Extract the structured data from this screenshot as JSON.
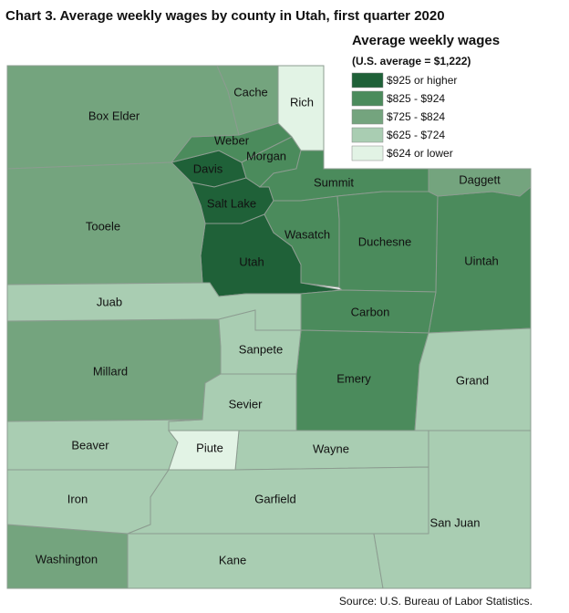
{
  "title": "Chart 3. Average weekly wages by county in Utah, first quarter 2020",
  "legend": {
    "title": "Average weekly wages",
    "subtitle": "(U.S. average = $1,222)",
    "items": [
      {
        "label": "$925 or higher",
        "color": "#1f6138",
        "counties": [
          "Davis",
          "Salt Lake",
          "Utah"
        ]
      },
      {
        "label": "$825 - $924",
        "color": "#4b8b5c",
        "counties": [
          "Weber",
          "Morgan",
          "Summit",
          "Wasatch",
          "Duchesne",
          "Uintah",
          "Carbon",
          "Emery"
        ]
      },
      {
        "label": "$725 - $824",
        "color": "#74a47e",
        "counties": [
          "Box Elder",
          "Cache",
          "Tooele",
          "Millard",
          "Washington",
          "Daggett"
        ]
      },
      {
        "label": "$625 - $724",
        "color": "#a9cdb2",
        "counties": [
          "Juab",
          "Sanpete",
          "Sevier",
          "Beaver",
          "Wayne",
          "Iron",
          "Garfield",
          "Kane",
          "San Juan",
          "Grand"
        ]
      },
      {
        "label": "$624 or lower",
        "color": "#e2f3e5",
        "counties": [
          "Rich",
          "Piute"
        ]
      }
    ]
  },
  "source": "Source: U.S. Bureau of Labor Statistics."
}
